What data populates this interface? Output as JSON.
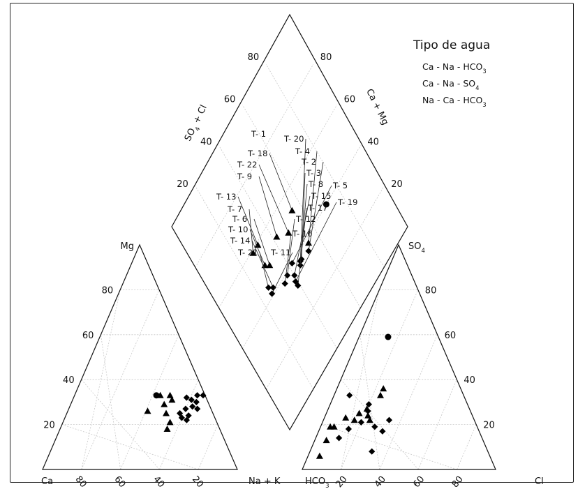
{
  "chart_data": {
    "type": "piper",
    "legend": {
      "title": "Tipo de agua",
      "items": [
        {
          "name": "Ca - Na - HCO",
          "sub": "3",
          "marker": "circle"
        },
        {
          "name": "Ca - Na - SO",
          "sub": "4",
          "marker": "triangle"
        },
        {
          "name": "Na - Ca - HCO",
          "sub": "3",
          "marker": "diamond"
        }
      ],
      "placement": "top-right"
    },
    "cation_triangle": {
      "corners": {
        "left": "Ca",
        "top": "Mg",
        "right": "Na + K"
      },
      "tick_labels": {
        "left_edge": [
          "20",
          "40",
          "60",
          "80"
        ],
        "bottom_edge": [
          "80",
          "60",
          "40",
          "20"
        ]
      },
      "points": [
        {
          "mg": 33,
          "na_k": 42,
          "marker": "circle"
        },
        {
          "mg": 33,
          "na_k": 44,
          "marker": "triangle"
        },
        {
          "mg": 33,
          "na_k": 49,
          "marker": "triangle"
        },
        {
          "mg": 31,
          "na_k": 51,
          "marker": "triangle"
        },
        {
          "mg": 29,
          "na_k": 48,
          "marker": "triangle"
        },
        {
          "mg": 26,
          "na_k": 41,
          "marker": "triangle"
        },
        {
          "mg": 25,
          "na_k": 51,
          "marker": "triangle"
        },
        {
          "mg": 21,
          "na_k": 55,
          "marker": "triangle"
        },
        {
          "mg": 18,
          "na_k": 55,
          "marker": "triangle"
        },
        {
          "mg": 33,
          "na_k": 63,
          "marker": "diamond"
        },
        {
          "mg": 33,
          "na_k": 66,
          "marker": "diamond"
        },
        {
          "mg": 32,
          "na_k": 58,
          "marker": "diamond"
        },
        {
          "mg": 31,
          "na_k": 61,
          "marker": "diamond"
        },
        {
          "mg": 30,
          "na_k": 64,
          "marker": "diamond"
        },
        {
          "mg": 28,
          "na_k": 63,
          "marker": "diamond"
        },
        {
          "mg": 27,
          "na_k": 60,
          "marker": "diamond"
        },
        {
          "mg": 27,
          "na_k": 66,
          "marker": "diamond"
        },
        {
          "mg": 25,
          "na_k": 58,
          "marker": "diamond"
        },
        {
          "mg": 24,
          "na_k": 63,
          "marker": "diamond"
        },
        {
          "mg": 23,
          "na_k": 60,
          "marker": "diamond"
        },
        {
          "mg": 22,
          "na_k": 63,
          "marker": "diamond"
        }
      ]
    },
    "anion_triangle": {
      "corners": {
        "left": "HCO",
        "left_sub": "3",
        "top": "SO",
        "top_sub": "4",
        "right": "Cl"
      },
      "tick_labels": {
        "right_edge": [
          "20",
          "40",
          "60",
          "80"
        ],
        "bottom_edge": [
          "20",
          "40",
          "60",
          "80"
        ]
      },
      "points": [
        {
          "so4": 59,
          "cl": 15,
          "marker": "circle"
        },
        {
          "so4": 36,
          "cl": 24,
          "marker": "triangle"
        },
        {
          "so4": 33,
          "cl": 24,
          "marker": "triangle"
        },
        {
          "so4": 27,
          "cl": 20,
          "marker": "triangle"
        },
        {
          "so4": 25,
          "cl": 17,
          "marker": "triangle"
        },
        {
          "so4": 24,
          "cl": 22,
          "marker": "triangle"
        },
        {
          "so4": 23,
          "cl": 11,
          "marker": "triangle"
        },
        {
          "so4": 22,
          "cl": 16,
          "marker": "triangle"
        },
        {
          "so4": 22,
          "cl": 24,
          "marker": "triangle"
        },
        {
          "so4": 19,
          "cl": 5,
          "marker": "triangle"
        },
        {
          "so4": 19,
          "cl": 7,
          "marker": "triangle"
        },
        {
          "so4": 13,
          "cl": 6,
          "marker": "triangle"
        },
        {
          "so4": 6,
          "cl": 6,
          "marker": "triangle"
        },
        {
          "so4": 33,
          "cl": 8,
          "marker": "diamond"
        },
        {
          "so4": 29,
          "cl": 20,
          "marker": "diamond"
        },
        {
          "so4": 26,
          "cl": 21,
          "marker": "diamond"
        },
        {
          "so4": 22,
          "cl": 34,
          "marker": "diamond"
        },
        {
          "so4": 21,
          "cl": 20,
          "marker": "diamond"
        },
        {
          "so4": 19,
          "cl": 28,
          "marker": "diamond"
        },
        {
          "so4": 18,
          "cl": 15,
          "marker": "diamond"
        },
        {
          "so4": 17,
          "cl": 33,
          "marker": "diamond"
        },
        {
          "so4": 14,
          "cl": 12,
          "marker": "diamond"
        },
        {
          "so4": 8,
          "cl": 32,
          "marker": "diamond"
        }
      ]
    },
    "diamond": {
      "top_left_label": "SO",
      "top_left_sub": "4",
      "top_left_suffix": " + Cl",
      "top_right_label": "Ca + Mg",
      "tick_labels": {
        "upper_left_edge": [
          "20",
          "40",
          "60",
          "80"
        ],
        "upper_right_edge": [
          "20",
          "40",
          "60",
          "80"
        ]
      },
      "points": [
        {
          "id": "T- 1",
          "so4_cl": 71,
          "ca_mg": 40,
          "marker": "circle"
        },
        {
          "id": "T- 18",
          "so4_cl": 55,
          "ca_mg": 53,
          "marker": "triangle"
        },
        {
          "id": "T- 22",
          "so4_cl": 48,
          "ca_mg": 49,
          "marker": "triangle"
        },
        {
          "id": "T- 9",
          "so4_cl": 42,
          "ca_mg": 53,
          "marker": "triangle"
        },
        {
          "id": "T- 13",
          "so4_cl": 32,
          "ca_mg": 59,
          "marker": "triangle"
        },
        {
          "id": "T- 7",
          "so4_cl": 28,
          "ca_mg": 59,
          "marker": "triangle"
        },
        {
          "id": "T- 6",
          "so4_cl": 32,
          "ca_mg": 49,
          "marker": "triangle"
        },
        {
          "id": "T- 10",
          "so4_cl": 30,
          "ca_mg": 51,
          "marker": "triangle"
        },
        {
          "id": "T- 20",
          "so4_cl": 46,
          "ca_mg": 37,
          "marker": "diamond"
        },
        {
          "id": "T- 4",
          "so4_cl": 54,
          "ca_mg": 38,
          "marker": "triangle"
        },
        {
          "id": "T- 2",
          "so4_cl": 52,
          "ca_mg": 36,
          "marker": "diamond"
        },
        {
          "id": "T- 3",
          "so4_cl": 47,
          "ca_mg": 37,
          "marker": "diamond"
        },
        {
          "id": "T- 8",
          "so4_cl": 45,
          "ca_mg": 36,
          "marker": "diamond"
        },
        {
          "id": "T- 5",
          "so4_cl": 42,
          "ca_mg": 40,
          "marker": "diamond"
        },
        {
          "id": "T- 15",
          "so4_cl": 40,
          "ca_mg": 36,
          "marker": "diamond"
        },
        {
          "id": "T- 19",
          "so4_cl": 39,
          "ca_mg": 34,
          "marker": "diamond"
        },
        {
          "id": "T- 17",
          "so4_cl": 39,
          "ca_mg": 32,
          "marker": "diamond"
        },
        {
          "id": "T- 12",
          "so4_cl": 37,
          "ca_mg": 39,
          "marker": "diamond"
        },
        {
          "id": "T- 16",
          "so4_cl": 34,
          "ca_mg": 38,
          "marker": "diamond"
        },
        {
          "id": "T- 14",
          "so4_cl": 28,
          "ca_mg": 42,
          "marker": "diamond"
        },
        {
          "id": "T- 21",
          "so4_cl": 26,
          "ca_mg": 44,
          "marker": "diamond"
        },
        {
          "id": "T- 11",
          "so4_cl": 26,
          "ca_mg": 41,
          "marker": "diamond"
        }
      ]
    }
  }
}
